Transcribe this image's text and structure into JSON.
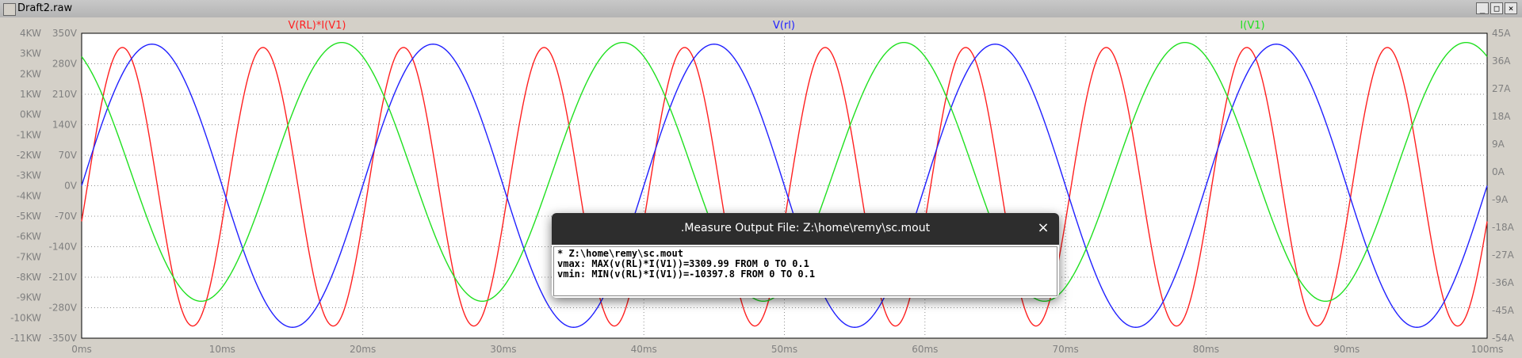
{
  "window": {
    "title": "Draft2.raw",
    "buttons": [
      "_",
      "□",
      "×"
    ]
  },
  "traces": {
    "labels": [
      {
        "name": "V(RL)*I(V1)",
        "color": "#ff2020"
      },
      {
        "name": "V(rl)",
        "color": "#2020ff"
      },
      {
        "name": "I(V1)",
        "color": "#20e020"
      }
    ]
  },
  "axes": {
    "left_outer": [
      "4KW",
      "3KW",
      "2KW",
      "1KW",
      "0KW",
      "-1KW",
      "-2KW",
      "-3KW",
      "-4KW",
      "-5KW",
      "-6KW",
      "-7KW",
      "-8KW",
      "-9KW",
      "-10KW",
      "-11KW"
    ],
    "left_inner": [
      "350V",
      "280V",
      "210V",
      "140V",
      "70V",
      "0V",
      "-70V",
      "-140V",
      "-210V",
      "-280V",
      "-350V"
    ],
    "right": [
      "45A",
      "36A",
      "27A",
      "18A",
      "9A",
      "0A",
      "-9A",
      "-18A",
      "-27A",
      "-36A",
      "-45A",
      "-54A"
    ],
    "x": [
      "0ms",
      "10ms",
      "20ms",
      "30ms",
      "40ms",
      "50ms",
      "60ms",
      "70ms",
      "80ms",
      "90ms",
      "100ms"
    ],
    "grid_color": "#909090",
    "tick_color": "#808080"
  },
  "chart_data": {
    "type": "line",
    "xlabel": "",
    "x_range_ms": [
      0,
      100
    ],
    "series": [
      {
        "name": "V(RL)*I(V1)",
        "color": "#ff2020",
        "amplitude_kW": 6.85,
        "offset_kW": -3.55,
        "period_ms": 10,
        "phase_ms": 0.4,
        "ylim_kW": [
          -11,
          4
        ]
      },
      {
        "name": "V(rl)",
        "color": "#2020ff",
        "amplitude_V": 325,
        "period_ms": 20,
        "phase_ms": 0,
        "ylim_V": [
          -350,
          350
        ]
      },
      {
        "name": "I(V1)",
        "color": "#20e020",
        "amplitude_A": 42,
        "offset_A": 0,
        "period_ms": 20,
        "phase_ms": -6.5,
        "ylim_A": [
          -54,
          45
        ]
      }
    ]
  },
  "dialog": {
    "title": ".Measure Output File: Z:\\home\\remy\\sc.mout",
    "close": "×",
    "lines": [
      "* Z:\\home\\remy\\sc.mout",
      "vmax: MAX(v(RL)*I(V1))=3309.99 FROM 0 TO 0.1",
      "vmin: MIN(v(RL)*I(V1))=-10397.8 FROM 0 TO 0.1"
    ]
  }
}
